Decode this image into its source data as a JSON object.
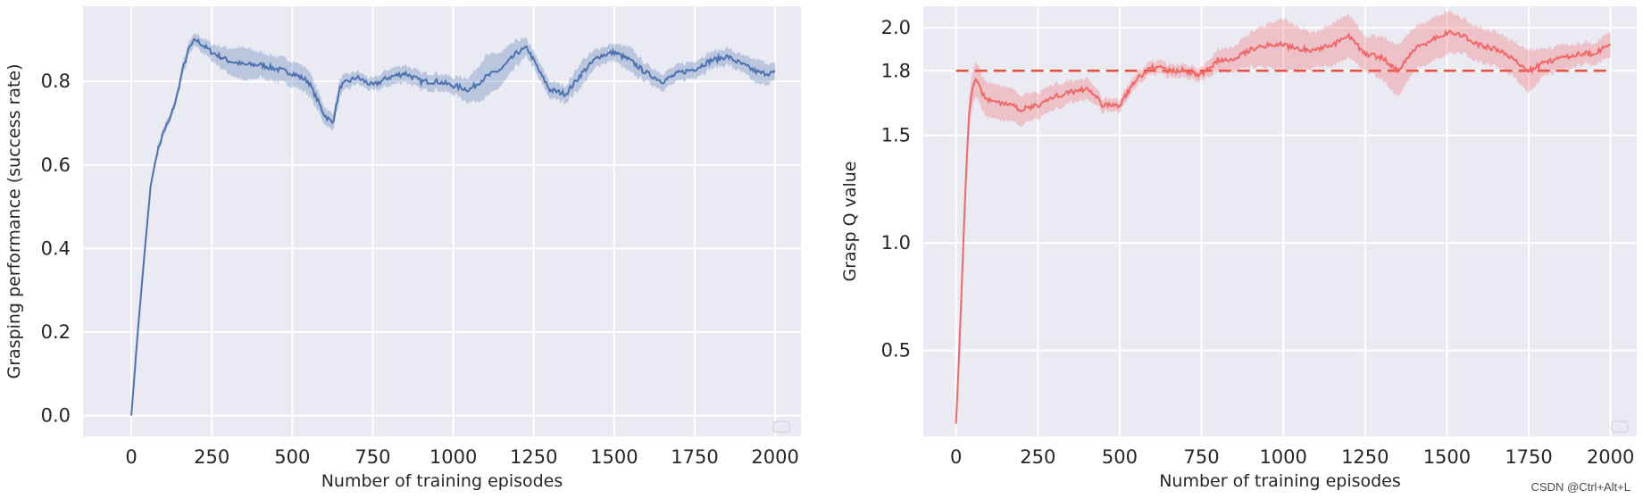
{
  "watermark": "CSDN @Ctrl+Alt+L",
  "chart_data": [
    {
      "type": "line",
      "xlabel": "Number of training episodes",
      "ylabel": "Grasping performance (success rate)",
      "xlim": [
        -150,
        2080
      ],
      "ylim": [
        -0.05,
        0.98
      ],
      "xticks": [
        0,
        250,
        500,
        750,
        1000,
        1250,
        1500,
        1750,
        2000
      ],
      "yticks": [
        0.0,
        0.2,
        0.4,
        0.6,
        0.8
      ],
      "ytick_labels": [
        "0.0",
        "0.2",
        "0.4",
        "0.6",
        "0.8"
      ],
      "grid": true,
      "legend": "empty box, bottom-right",
      "colors": {
        "line": "#4c72b0",
        "band": "#4c72b0",
        "background": "#eaeaf2",
        "grid": "#ffffff"
      },
      "series": [
        {
          "x": [
            0,
            20,
            40,
            60,
            80,
            100,
            120,
            140,
            160,
            180,
            200,
            250,
            300,
            350,
            400,
            450,
            500,
            550,
            600,
            625,
            650,
            700,
            750,
            800,
            850,
            900,
            950,
            1000,
            1050,
            1100,
            1150,
            1200,
            1230,
            1270,
            1300,
            1350,
            1400,
            1450,
            1500,
            1550,
            1600,
            1650,
            1700,
            1750,
            1800,
            1850,
            1900,
            1950,
            2000
          ],
          "y": [
            0.0,
            0.2,
            0.38,
            0.55,
            0.63,
            0.68,
            0.71,
            0.76,
            0.83,
            0.88,
            0.9,
            0.87,
            0.85,
            0.84,
            0.84,
            0.83,
            0.82,
            0.8,
            0.72,
            0.7,
            0.79,
            0.81,
            0.79,
            0.81,
            0.82,
            0.8,
            0.8,
            0.79,
            0.78,
            0.81,
            0.83,
            0.87,
            0.88,
            0.82,
            0.78,
            0.77,
            0.82,
            0.86,
            0.87,
            0.85,
            0.82,
            0.8,
            0.82,
            0.83,
            0.85,
            0.86,
            0.84,
            0.82,
            0.82
          ],
          "band_halfwidth": [
            0.0,
            0.0,
            0.01,
            0.01,
            0.01,
            0.01,
            0.01,
            0.01,
            0.015,
            0.015,
            0.015,
            0.02,
            0.03,
            0.04,
            0.03,
            0.03,
            0.03,
            0.03,
            0.02,
            0.02,
            0.02,
            0.015,
            0.015,
            0.02,
            0.02,
            0.02,
            0.02,
            0.02,
            0.03,
            0.05,
            0.04,
            0.03,
            0.02,
            0.02,
            0.02,
            0.02,
            0.03,
            0.02,
            0.02,
            0.03,
            0.02,
            0.02,
            0.02,
            0.02,
            0.02,
            0.02,
            0.02,
            0.03,
            0.02
          ]
        }
      ]
    },
    {
      "type": "line",
      "xlabel": "Number of training episodes",
      "ylabel": "Grasp Q value",
      "xlim": [
        -100,
        2080
      ],
      "ylim": [
        0.1,
        2.1
      ],
      "xticks": [
        0,
        250,
        500,
        750,
        1000,
        1250,
        1500,
        1750,
        2000
      ],
      "yticks": [
        0.5,
        1.0,
        1.5,
        1.8,
        2.0
      ],
      "ytick_labels": [
        "0.5",
        "1.0",
        "1.5",
        "1.8",
        "2.0"
      ],
      "reference_line": {
        "y": 1.8,
        "style": "dashed"
      },
      "grid": true,
      "legend": "empty box, bottom-right",
      "colors": {
        "line": "#f26666",
        "band": "#f26666",
        "reference": "#e74c3c",
        "background": "#eaeaf2",
        "grid": "#ffffff"
      },
      "series": [
        {
          "x": [
            0,
            10,
            20,
            30,
            40,
            50,
            60,
            70,
            80,
            100,
            150,
            200,
            250,
            300,
            350,
            400,
            450,
            500,
            550,
            600,
            650,
            700,
            750,
            800,
            850,
            900,
            950,
            1000,
            1050,
            1100,
            1150,
            1200,
            1250,
            1300,
            1350,
            1400,
            1450,
            1500,
            1550,
            1600,
            1650,
            1700,
            1750,
            1800,
            1850,
            1900,
            1950,
            2000
          ],
          "y": [
            0.16,
            0.5,
            0.9,
            1.3,
            1.6,
            1.72,
            1.76,
            1.74,
            1.7,
            1.66,
            1.65,
            1.62,
            1.64,
            1.68,
            1.7,
            1.72,
            1.64,
            1.64,
            1.76,
            1.82,
            1.8,
            1.8,
            1.78,
            1.85,
            1.86,
            1.9,
            1.92,
            1.92,
            1.9,
            1.9,
            1.92,
            1.96,
            1.88,
            1.86,
            1.8,
            1.9,
            1.94,
            1.98,
            1.96,
            1.92,
            1.9,
            1.86,
            1.8,
            1.84,
            1.86,
            1.88,
            1.88,
            1.92
          ],
          "band_halfwidth": [
            0.02,
            0.03,
            0.03,
            0.05,
            0.08,
            0.08,
            0.08,
            0.08,
            0.08,
            0.08,
            0.08,
            0.07,
            0.06,
            0.06,
            0.05,
            0.05,
            0.03,
            0.03,
            0.03,
            0.03,
            0.03,
            0.03,
            0.03,
            0.05,
            0.06,
            0.08,
            0.1,
            0.12,
            0.1,
            0.08,
            0.1,
            0.1,
            0.08,
            0.1,
            0.12,
            0.1,
            0.1,
            0.1,
            0.08,
            0.08,
            0.08,
            0.08,
            0.1,
            0.06,
            0.06,
            0.05,
            0.05,
            0.06
          ]
        }
      ]
    }
  ]
}
